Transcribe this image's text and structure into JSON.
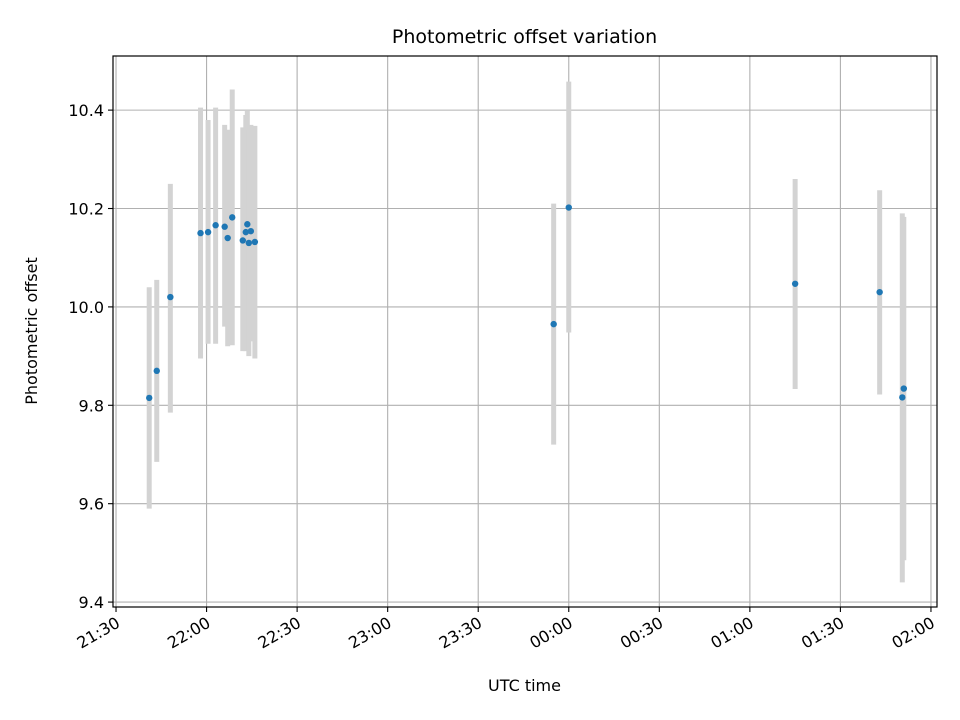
{
  "chart_data": {
    "type": "scatter",
    "title": "Photometric offset variation",
    "xlabel": "UTC time",
    "ylabel": "Photometric offset",
    "x_axis": "time",
    "xlim": [
      "21:29",
      "02:02"
    ],
    "ylim": [
      9.39,
      10.51
    ],
    "grid": true,
    "x_ticks": [
      {
        "t": "21:30",
        "label": "21:30"
      },
      {
        "t": "22:00",
        "label": "22:00"
      },
      {
        "t": "22:30",
        "label": "22:30"
      },
      {
        "t": "23:00",
        "label": "23:00"
      },
      {
        "t": "23:30",
        "label": "23:30"
      },
      {
        "t": "00:00",
        "label": "00:00"
      },
      {
        "t": "00:30",
        "label": "00:30"
      },
      {
        "t": "01:00",
        "label": "01:00"
      },
      {
        "t": "01:30",
        "label": "01:30"
      },
      {
        "t": "02:00",
        "label": "02:00"
      }
    ],
    "y_ticks": [
      9.4,
      9.6,
      9.8,
      10.0,
      10.2,
      10.4
    ],
    "y_tick_labels": [
      "9.4",
      "9.6",
      "9.8",
      "10.0",
      "10.2",
      "10.4"
    ],
    "colors": {
      "point": "#1f77b4",
      "errorbar": "#d3d3d3",
      "grid": "#b0b0b0"
    },
    "points": [
      {
        "t": "21:41",
        "y": 9.815,
        "err_low": 9.59,
        "err_high": 10.04
      },
      {
        "t": "21:43:30",
        "y": 9.87,
        "err_low": 9.685,
        "err_high": 10.055
      },
      {
        "t": "21:48",
        "y": 10.02,
        "err_low": 9.785,
        "err_high": 10.25
      },
      {
        "t": "21:58",
        "y": 10.15,
        "err_low": 9.895,
        "err_high": 10.405
      },
      {
        "t": "22:00:30",
        "y": 10.152,
        "err_low": 9.925,
        "err_high": 10.38
      },
      {
        "t": "22:03",
        "y": 10.166,
        "err_low": 9.925,
        "err_high": 10.405
      },
      {
        "t": "22:06",
        "y": 10.163,
        "err_low": 9.96,
        "err_high": 10.37
      },
      {
        "t": "22:07",
        "y": 10.14,
        "err_low": 9.92,
        "err_high": 10.36
      },
      {
        "t": "22:08:30",
        "y": 10.182,
        "err_low": 9.922,
        "err_high": 10.442
      },
      {
        "t": "22:12",
        "y": 10.135,
        "err_low": 9.91,
        "err_high": 10.365
      },
      {
        "t": "22:13",
        "y": 10.152,
        "err_low": 9.91,
        "err_high": 10.39
      },
      {
        "t": "22:13:30",
        "y": 10.168,
        "err_low": 9.92,
        "err_high": 10.4
      },
      {
        "t": "22:14",
        "y": 10.13,
        "err_low": 9.9,
        "err_high": 10.36
      },
      {
        "t": "22:14:40",
        "y": 10.154,
        "err_low": 9.93,
        "err_high": 10.37
      },
      {
        "t": "22:16",
        "y": 10.132,
        "err_low": 9.895,
        "err_high": 10.368
      },
      {
        "t": "23:55",
        "y": 9.965,
        "err_low": 9.72,
        "err_high": 10.21
      },
      {
        "t": "00:00",
        "y": 10.202,
        "err_low": 9.948,
        "err_high": 10.458
      },
      {
        "t": "01:15",
        "y": 10.047,
        "err_low": 9.833,
        "err_high": 10.26
      },
      {
        "t": "01:43",
        "y": 10.03,
        "err_low": 9.822,
        "err_high": 10.237
      },
      {
        "t": "01:50:30",
        "y": 9.816,
        "err_low": 9.44,
        "err_high": 10.19
      },
      {
        "t": "01:51",
        "y": 9.834,
        "err_low": 9.485,
        "err_high": 10.183
      }
    ]
  }
}
